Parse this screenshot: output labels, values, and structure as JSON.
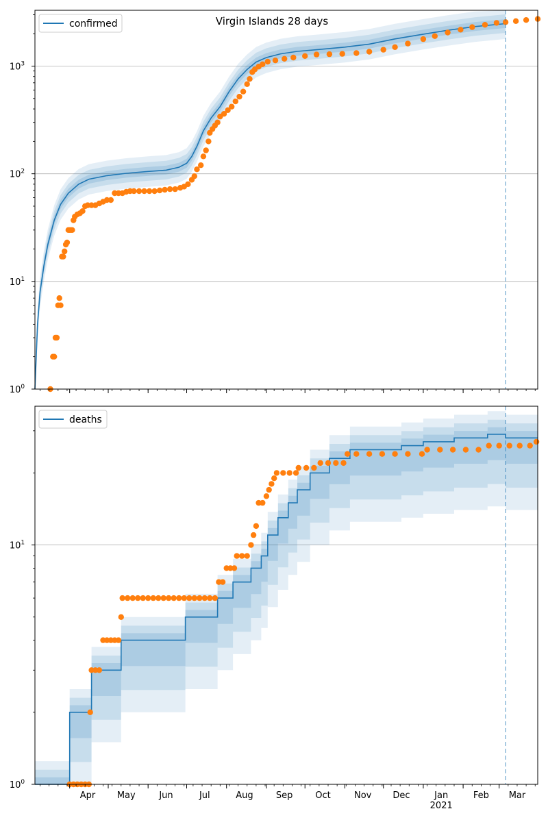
{
  "figure_title": "Virgin Islands 28 days",
  "x_axis": {
    "start": "2020-03-05",
    "end": "2021-03-31",
    "month_ticks": [
      {
        "date": "2020-04-01",
        "label": "Apr"
      },
      {
        "date": "2020-05-01",
        "label": "May"
      },
      {
        "date": "2020-06-01",
        "label": "Jun"
      },
      {
        "date": "2020-07-01",
        "label": "Jul"
      },
      {
        "date": "2020-08-01",
        "label": "Aug"
      },
      {
        "date": "2020-09-01",
        "label": "Sep"
      },
      {
        "date": "2020-10-01",
        "label": "Oct"
      },
      {
        "date": "2020-11-01",
        "label": "Nov"
      },
      {
        "date": "2020-12-01",
        "label": "Dec"
      },
      {
        "date": "2021-01-01",
        "label": "Jan"
      },
      {
        "date": "2021-02-01",
        "label": "Feb"
      },
      {
        "date": "2021-03-01",
        "label": "Mar"
      }
    ],
    "year_label": {
      "date": "2021-01-01",
      "label": "2021"
    },
    "forecast_start": "2021-03-06"
  },
  "colors": {
    "model": "#1f77b4",
    "observed": "#ff7f0e",
    "band": "#1f77b4",
    "grid": "#b0b0b0",
    "forecast_line": "#1f77b4"
  },
  "chart_data": [
    {
      "type": "line",
      "name": "confirmed",
      "legend": {
        "label": "confirmed",
        "placement": "upper-left"
      },
      "y_scale": "log",
      "ylim": [
        1,
        3300
      ],
      "y_ticks": [
        {
          "value": 1,
          "base": "10",
          "exp": "0"
        },
        {
          "value": 10,
          "base": "10",
          "exp": "1"
        },
        {
          "value": 100,
          "base": "10",
          "exp": "2"
        },
        {
          "value": 1000,
          "base": "10",
          "exp": "3"
        }
      ],
      "grid": "horizontal at major ticks",
      "model_series": {
        "label": "confirmed",
        "points": [
          [
            "2020-03-05",
            1
          ],
          [
            "2020-03-07",
            4
          ],
          [
            "2020-03-09",
            8
          ],
          [
            "2020-03-12",
            14
          ],
          [
            "2020-03-15",
            22
          ],
          [
            "2020-03-20",
            37
          ],
          [
            "2020-03-25",
            52
          ],
          [
            "2020-03-31",
            66
          ],
          [
            "2020-04-08",
            80
          ],
          [
            "2020-04-16",
            89
          ],
          [
            "2020-04-30",
            96
          ],
          [
            "2020-05-15",
            101
          ],
          [
            "2020-06-01",
            105
          ],
          [
            "2020-06-15",
            108
          ],
          [
            "2020-06-25",
            115
          ],
          [
            "2020-07-01",
            125
          ],
          [
            "2020-07-05",
            145
          ],
          [
            "2020-07-09",
            180
          ],
          [
            "2020-07-14",
            250
          ],
          [
            "2020-07-20",
            330
          ],
          [
            "2020-07-27",
            420
          ],
          [
            "2020-08-03",
            580
          ],
          [
            "2020-08-10",
            760
          ],
          [
            "2020-08-17",
            930
          ],
          [
            "2020-08-24",
            1090
          ],
          [
            "2020-09-01",
            1200
          ],
          [
            "2020-09-12",
            1300
          ],
          [
            "2020-09-25",
            1370
          ],
          [
            "2020-10-10",
            1420
          ],
          [
            "2020-11-01",
            1500
          ],
          [
            "2020-11-20",
            1600
          ],
          [
            "2020-12-10",
            1790
          ],
          [
            "2021-01-01",
            1980
          ],
          [
            "2021-01-20",
            2150
          ],
          [
            "2021-02-10",
            2330
          ],
          [
            "2021-03-06",
            2480
          ]
        ],
        "bands": [
          {
            "level": "outer",
            "lower_factor": 0.72,
            "upper_factor": 1.38
          },
          {
            "level": "middle",
            "lower_factor": 0.82,
            "upper_factor": 1.22
          },
          {
            "level": "inner",
            "lower_factor": 0.91,
            "upper_factor": 1.1
          }
        ]
      },
      "observed_series": {
        "points": [
          [
            "2020-03-17",
            1
          ],
          [
            "2020-03-19",
            2
          ],
          [
            "2020-03-20",
            2
          ],
          [
            "2020-03-21",
            3
          ],
          [
            "2020-03-22",
            3
          ],
          [
            "2020-03-23",
            6
          ],
          [
            "2020-03-24",
            7
          ],
          [
            "2020-03-25",
            6
          ],
          [
            "2020-03-26",
            17
          ],
          [
            "2020-03-27",
            17
          ],
          [
            "2020-03-28",
            19
          ],
          [
            "2020-03-29",
            22
          ],
          [
            "2020-03-30",
            23
          ],
          [
            "2020-03-31",
            30
          ],
          [
            "2020-04-01",
            30
          ],
          [
            "2020-04-02",
            30
          ],
          [
            "2020-04-03",
            30
          ],
          [
            "2020-04-04",
            37
          ],
          [
            "2020-04-05",
            40
          ],
          [
            "2020-04-07",
            42
          ],
          [
            "2020-04-09",
            43
          ],
          [
            "2020-04-11",
            45
          ],
          [
            "2020-04-13",
            50
          ],
          [
            "2020-04-15",
            51
          ],
          [
            "2020-04-18",
            51
          ],
          [
            "2020-04-21",
            51
          ],
          [
            "2020-04-24",
            53
          ],
          [
            "2020-04-27",
            55
          ],
          [
            "2020-04-30",
            57
          ],
          [
            "2020-05-03",
            57
          ],
          [
            "2020-05-06",
            66
          ],
          [
            "2020-05-09",
            66
          ],
          [
            "2020-05-12",
            66
          ],
          [
            "2020-05-15",
            68
          ],
          [
            "2020-05-18",
            69
          ],
          [
            "2020-05-21",
            69
          ],
          [
            "2020-05-25",
            69
          ],
          [
            "2020-05-29",
            69
          ],
          [
            "2020-06-02",
            69
          ],
          [
            "2020-06-06",
            69
          ],
          [
            "2020-06-10",
            70
          ],
          [
            "2020-06-14",
            71
          ],
          [
            "2020-06-18",
            72
          ],
          [
            "2020-06-22",
            72
          ],
          [
            "2020-06-26",
            74
          ],
          [
            "2020-06-29",
            76
          ],
          [
            "2020-07-02",
            80
          ],
          [
            "2020-07-05",
            88
          ],
          [
            "2020-07-07",
            95
          ],
          [
            "2020-07-09",
            110
          ],
          [
            "2020-07-12",
            120
          ],
          [
            "2020-07-14",
            145
          ],
          [
            "2020-07-16",
            165
          ],
          [
            "2020-07-18",
            200
          ],
          [
            "2020-07-19",
            240
          ],
          [
            "2020-07-21",
            260
          ],
          [
            "2020-07-23",
            280
          ],
          [
            "2020-07-25",
            300
          ],
          [
            "2020-07-27",
            340
          ],
          [
            "2020-07-30",
            360
          ],
          [
            "2020-08-02",
            390
          ],
          [
            "2020-08-05",
            420
          ],
          [
            "2020-08-08",
            470
          ],
          [
            "2020-08-11",
            520
          ],
          [
            "2020-08-14",
            580
          ],
          [
            "2020-08-17",
            680
          ],
          [
            "2020-08-19",
            760
          ],
          [
            "2020-08-21",
            880
          ],
          [
            "2020-08-23",
            930
          ],
          [
            "2020-08-26",
            990
          ],
          [
            "2020-08-29",
            1040
          ],
          [
            "2020-09-02",
            1100
          ],
          [
            "2020-09-08",
            1130
          ],
          [
            "2020-09-15",
            1170
          ],
          [
            "2020-09-22",
            1200
          ],
          [
            "2020-10-01",
            1240
          ],
          [
            "2020-10-10",
            1280
          ],
          [
            "2020-10-20",
            1290
          ],
          [
            "2020-10-30",
            1300
          ],
          [
            "2020-11-10",
            1320
          ],
          [
            "2020-11-20",
            1360
          ],
          [
            "2020-12-01",
            1420
          ],
          [
            "2020-12-10",
            1500
          ],
          [
            "2020-12-20",
            1620
          ],
          [
            "2021-01-01",
            1780
          ],
          [
            "2021-01-10",
            1900
          ],
          [
            "2021-01-20",
            2050
          ],
          [
            "2021-01-30",
            2180
          ],
          [
            "2021-02-08",
            2300
          ],
          [
            "2021-02-18",
            2420
          ],
          [
            "2021-02-27",
            2520
          ],
          [
            "2021-03-06",
            2560
          ],
          [
            "2021-03-14",
            2620
          ],
          [
            "2021-03-22",
            2680
          ],
          [
            "2021-03-31",
            2740
          ]
        ]
      }
    },
    {
      "type": "step",
      "name": "deaths",
      "legend": {
        "label": "deaths",
        "placement": "upper-left"
      },
      "y_scale": "log",
      "ylim": [
        1,
        38
      ],
      "y_ticks": [
        {
          "value": 1,
          "base": "10",
          "exp": "0"
        },
        {
          "value": 10,
          "base": "10",
          "exp": "1"
        }
      ],
      "grid": "horizontal at major ticks",
      "model_series": {
        "label": "deaths",
        "steps": [
          [
            "2020-03-05",
            1
          ],
          [
            "2020-04-01",
            2
          ],
          [
            "2020-04-18",
            3
          ],
          [
            "2020-05-11",
            4
          ],
          [
            "2020-06-30",
            5
          ],
          [
            "2020-07-25",
            6
          ],
          [
            "2020-08-06",
            7
          ],
          [
            "2020-08-20",
            8
          ],
          [
            "2020-08-28",
            9
          ],
          [
            "2020-09-02",
            11
          ],
          [
            "2020-09-10",
            13
          ],
          [
            "2020-09-18",
            15
          ],
          [
            "2020-09-25",
            17
          ],
          [
            "2020-10-05",
            20
          ],
          [
            "2020-10-20",
            23
          ],
          [
            "2020-11-05",
            25
          ],
          [
            "2020-12-15",
            26
          ],
          [
            "2021-01-01",
            27
          ],
          [
            "2021-01-25",
            28
          ],
          [
            "2021-02-20",
            29
          ],
          [
            "2021-03-06",
            28
          ],
          [
            "2021-03-20",
            28
          ]
        ],
        "bands": [
          {
            "level": "outer",
            "lower_factor": 0.5,
            "upper_factor": 1.25
          },
          {
            "level": "middle",
            "lower_factor": 0.62,
            "upper_factor": 1.15
          },
          {
            "level": "inner",
            "lower_factor": 0.78,
            "upper_factor": 1.07
          }
        ]
      },
      "observed_series": {
        "points": [
          [
            "2020-04-01",
            1
          ],
          [
            "2020-04-04",
            1
          ],
          [
            "2020-04-07",
            1
          ],
          [
            "2020-04-10",
            1
          ],
          [
            "2020-04-13",
            1
          ],
          [
            "2020-04-16",
            1
          ],
          [
            "2020-04-17",
            2
          ],
          [
            "2020-04-18",
            3
          ],
          [
            "2020-04-21",
            3
          ],
          [
            "2020-04-24",
            3
          ],
          [
            "2020-04-27",
            4
          ],
          [
            "2020-04-30",
            4
          ],
          [
            "2020-05-03",
            4
          ],
          [
            "2020-05-06",
            4
          ],
          [
            "2020-05-09",
            4
          ],
          [
            "2020-05-11",
            5
          ],
          [
            "2020-05-12",
            6
          ],
          [
            "2020-05-16",
            6
          ],
          [
            "2020-05-20",
            6
          ],
          [
            "2020-05-24",
            6
          ],
          [
            "2020-05-28",
            6
          ],
          [
            "2020-06-01",
            6
          ],
          [
            "2020-06-05",
            6
          ],
          [
            "2020-06-09",
            6
          ],
          [
            "2020-06-13",
            6
          ],
          [
            "2020-06-17",
            6
          ],
          [
            "2020-06-21",
            6
          ],
          [
            "2020-06-25",
            6
          ],
          [
            "2020-06-29",
            6
          ],
          [
            "2020-07-03",
            6
          ],
          [
            "2020-07-07",
            6
          ],
          [
            "2020-07-11",
            6
          ],
          [
            "2020-07-15",
            6
          ],
          [
            "2020-07-19",
            6
          ],
          [
            "2020-07-23",
            6
          ],
          [
            "2020-07-26",
            7
          ],
          [
            "2020-07-29",
            7
          ],
          [
            "2020-08-01",
            8
          ],
          [
            "2020-08-04",
            8
          ],
          [
            "2020-08-07",
            8
          ],
          [
            "2020-08-09",
            9
          ],
          [
            "2020-08-13",
            9
          ],
          [
            "2020-08-17",
            9
          ],
          [
            "2020-08-20",
            10
          ],
          [
            "2020-08-22",
            11
          ],
          [
            "2020-08-24",
            12
          ],
          [
            "2020-08-26",
            15
          ],
          [
            "2020-08-29",
            15
          ],
          [
            "2020-09-01",
            16
          ],
          [
            "2020-09-03",
            17
          ],
          [
            "2020-09-05",
            18
          ],
          [
            "2020-09-07",
            19
          ],
          [
            "2020-09-09",
            20
          ],
          [
            "2020-09-14",
            20
          ],
          [
            "2020-09-19",
            20
          ],
          [
            "2020-09-24",
            20
          ],
          [
            "2020-09-26",
            21
          ],
          [
            "2020-10-02",
            21
          ],
          [
            "2020-10-08",
            21
          ],
          [
            "2020-10-13",
            22
          ],
          [
            "2020-10-19",
            22
          ],
          [
            "2020-10-25",
            22
          ],
          [
            "2020-10-31",
            22
          ],
          [
            "2020-11-03",
            24
          ],
          [
            "2020-11-10",
            24
          ],
          [
            "2020-11-20",
            24
          ],
          [
            "2020-11-30",
            24
          ],
          [
            "2020-12-10",
            24
          ],
          [
            "2020-12-20",
            24
          ],
          [
            "2020-12-31",
            24
          ],
          [
            "2021-01-04",
            25
          ],
          [
            "2021-01-14",
            25
          ],
          [
            "2021-01-24",
            25
          ],
          [
            "2021-02-03",
            25
          ],
          [
            "2021-02-13",
            25
          ],
          [
            "2021-02-21",
            26
          ],
          [
            "2021-03-01",
            26
          ],
          [
            "2021-03-09",
            26
          ],
          [
            "2021-03-17",
            26
          ],
          [
            "2021-03-25",
            26
          ],
          [
            "2021-03-30",
            27
          ]
        ]
      }
    }
  ]
}
